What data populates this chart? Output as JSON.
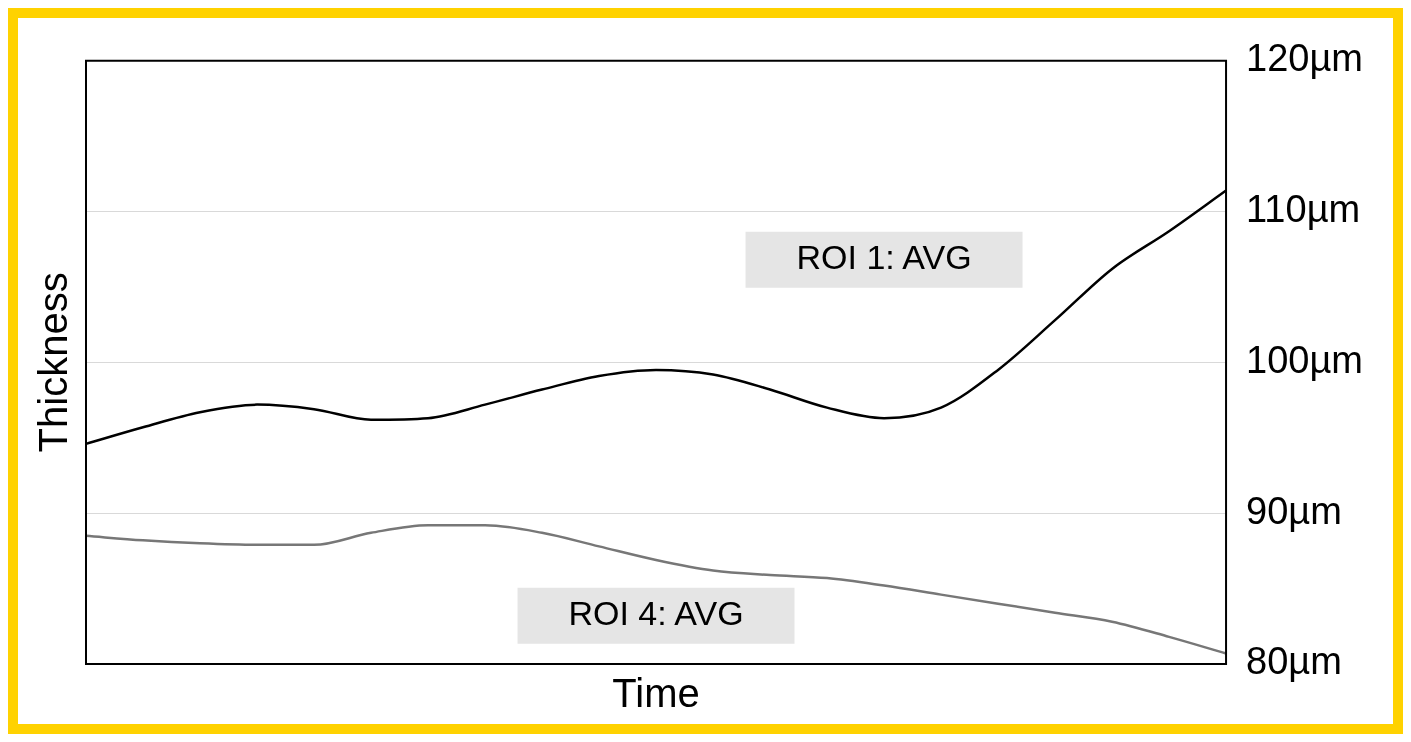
{
  "chart_data": {
    "type": "line",
    "xlabel": "Time",
    "ylabel": "Thickness",
    "categories": [
      null,
      null,
      null,
      null,
      null,
      null,
      null,
      null,
      null,
      null,
      null,
      null,
      null,
      null,
      null,
      null,
      null,
      null,
      null,
      null,
      null
    ],
    "series": [
      {
        "name": "ROI 1: AVG",
        "color": "#000000",
        "values": [
          94.6,
          95.7,
          96.7,
          97.2,
          96.9,
          96.2,
          96.3,
          97.2,
          98.2,
          99.1,
          99.5,
          99.2,
          98.2,
          97.0,
          96.3,
          97.0,
          99.5,
          102.8,
          106.2,
          108.7,
          111.4
        ]
      },
      {
        "name": "ROI 4: AVG",
        "color": "#777777",
        "values": [
          88.5,
          88.2,
          88.0,
          87.9,
          87.9,
          88.7,
          89.2,
          89.2,
          88.7,
          87.8,
          86.9,
          86.2,
          85.9,
          85.7,
          85.2,
          84.6,
          84.0,
          83.4,
          82.8,
          81.8,
          80.7
        ]
      }
    ],
    "ylim": [
      80,
      120
    ],
    "yticks": [
      {
        "value": 80,
        "label": "80µm"
      },
      {
        "value": 90,
        "label": "90µm"
      },
      {
        "value": 100,
        "label": "100µm"
      },
      {
        "value": 110,
        "label": "110µm"
      },
      {
        "value": 120,
        "label": "120µm"
      }
    ],
    "grid": "y",
    "legend": false,
    "marker": "none",
    "line_style": "solid"
  }
}
